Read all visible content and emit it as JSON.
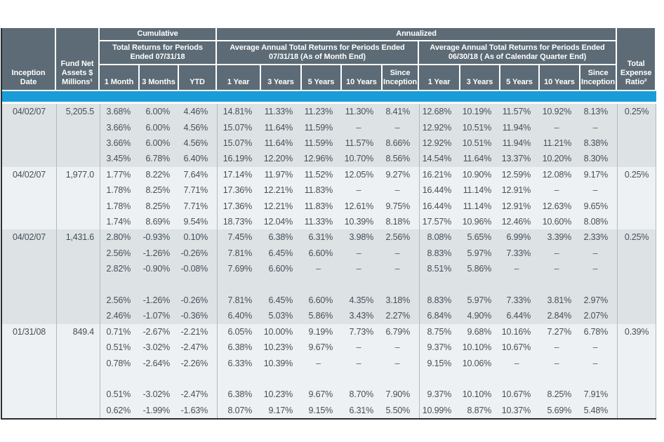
{
  "colors": {
    "frame": "#2b2e30",
    "header_bg": "#5c6b75",
    "accent_blue": "#199cd8",
    "row_dark": "#dde2e5",
    "row_light": "#eef1f3",
    "ink": "#474f57",
    "line": "#b2b8bd"
  },
  "table": {
    "header": {
      "inception_date": "Inception Date",
      "fund_net_assets": "Fund Net Assets $ Millions¹",
      "cumulative": "Cumulative",
      "annualized": "Annualized",
      "cumulative_period": "Total Returns for Periods Ended 07/31/18",
      "month_end_period": "Average Annual Total Returns for Periods Ended 07/31/18 (As of Month End)",
      "quarter_end_period": "Average Annual Total Returns for Periods Ended 06/30/18 ( As of Calendar Quarter End)",
      "total_expense_ratio": "Total Expense Ratio²",
      "period_cols": [
        "1 Month",
        "3 Months",
        "YTD",
        "1 Year",
        "3 Years",
        "5 Years",
        "10 Years",
        "Since Inception",
        "1 Year",
        "3 Years",
        "5 Years",
        "10 Years",
        "Since Inception"
      ]
    },
    "groups": [
      {
        "inception": "04/02/07",
        "assets": "5,205.5",
        "expense": "0.25%",
        "rows": [
          [
            "3.68%",
            "6.00%",
            "4.46%",
            "14.81%",
            "11.33%",
            "11.23%",
            "11.30%",
            "8.41%",
            "12.68%",
            "10.19%",
            "11.57%",
            "10.92%",
            "8.13%"
          ],
          [
            "3.66%",
            "6.00%",
            "4.56%",
            "15.07%",
            "11.64%",
            "11.59%",
            "–",
            "–",
            "12.92%",
            "10.51%",
            "11.94%",
            "–",
            "–"
          ],
          [
            "3.66%",
            "6.00%",
            "4.56%",
            "15.07%",
            "11.64%",
            "11.59%",
            "11.57%",
            "8.66%",
            "12.92%",
            "10.51%",
            "11.94%",
            "11.21%",
            "8.38%"
          ],
          [
            "3.45%",
            "6.78%",
            "6.40%",
            "16.19%",
            "12.20%",
            "12.96%",
            "10.70%",
            "8.56%",
            "14.54%",
            "11.64%",
            "13.37%",
            "10.20%",
            "8.30%"
          ]
        ]
      },
      {
        "inception": "04/02/07",
        "assets": "1,977.0",
        "expense": "0.25%",
        "rows": [
          [
            "1.77%",
            "8.22%",
            "7.64%",
            "17.14%",
            "11.97%",
            "11.52%",
            "12.05%",
            "9.27%",
            "16.21%",
            "10.90%",
            "12.59%",
            "12.08%",
            "9.17%"
          ],
          [
            "1.78%",
            "8.25%",
            "7.71%",
            "17.36%",
            "12.21%",
            "11.83%",
            "–",
            "–",
            "16.44%",
            "11.14%",
            "12.91%",
            "–",
            "–"
          ],
          [
            "1.78%",
            "8.25%",
            "7.71%",
            "17.36%",
            "12.21%",
            "11.83%",
            "12.61%",
            "9.75%",
            "16.44%",
            "11.14%",
            "12.91%",
            "12.63%",
            "9.65%"
          ],
          [
            "1.74%",
            "8.69%",
            "9.54%",
            "18.73%",
            "12.04%",
            "11.33%",
            "10.39%",
            "8.18%",
            "17.57%",
            "10.96%",
            "12.46%",
            "10.60%",
            "8.08%"
          ]
        ]
      },
      {
        "inception": "04/02/07",
        "assets": "1,431.6",
        "expense": "0.25%",
        "rows": [
          [
            "2.80%",
            "-0.93%",
            "0.10%",
            "7.45%",
            "6.38%",
            "6.31%",
            "3.98%",
            "2.56%",
            "8.08%",
            "5.65%",
            "6.99%",
            "3.39%",
            "2.33%"
          ],
          [
            "2.56%",
            "-1.26%",
            "-0.26%",
            "7.81%",
            "6.45%",
            "6.60%",
            "–",
            "–",
            "8.83%",
            "5.97%",
            "7.33%",
            "–",
            "–"
          ],
          [
            "2.82%",
            "-0.90%",
            "-0.08%",
            "7.69%",
            "6.60%",
            "–",
            "–",
            "–",
            "8.51%",
            "5.86%",
            "–",
            "–",
            "–"
          ],
          [],
          [
            "2.56%",
            "-1.26%",
            "-0.26%",
            "7.81%",
            "6.45%",
            "6.60%",
            "4.35%",
            "3.18%",
            "8.83%",
            "5.97%",
            "7.33%",
            "3.81%",
            "2.97%"
          ],
          [
            "2.46%",
            "-1.07%",
            "-0.36%",
            "6.40%",
            "5.03%",
            "5.86%",
            "3.43%",
            "2.27%",
            "6.84%",
            "4.90%",
            "6.44%",
            "2.84%",
            "2.07%"
          ]
        ]
      },
      {
        "inception": "01/31/08",
        "assets": "849.4",
        "expense": "0.39%",
        "rows": [
          [
            "0.71%",
            "-2.67%",
            "-2.21%",
            "6.05%",
            "10.00%",
            "9.19%",
            "7.73%",
            "6.79%",
            "8.75%",
            "9.68%",
            "10.16%",
            "7.27%",
            "6.78%"
          ],
          [
            "0.51%",
            "-3.02%",
            "-2.47%",
            "6.38%",
            "10.23%",
            "9.67%",
            "–",
            "–",
            "9.37%",
            "10.10%",
            "10.67%",
            "–",
            "–"
          ],
          [
            "0.78%",
            "-2.64%",
            "-2.26%",
            "6.33%",
            "10.39%",
            "–",
            "–",
            "–",
            "9.15%",
            "10.06%",
            "–",
            "–",
            "–"
          ],
          [],
          [
            "0.51%",
            "-3.02%",
            "-2.47%",
            "6.38%",
            "10.23%",
            "9.67%",
            "8.70%",
            "7.90%",
            "9.37%",
            "10.10%",
            "10.67%",
            "8.25%",
            "7.91%"
          ],
          [
            "0.62%",
            "-1.99%",
            "-1.63%",
            "8.07%",
            "9.17%",
            "9.15%",
            "6.31%",
            "5.50%",
            "10.99%",
            "8.87%",
            "10.37%",
            "5.69%",
            "5.48%"
          ]
        ]
      }
    ]
  }
}
